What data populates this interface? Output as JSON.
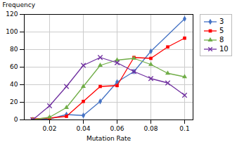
{
  "chart_data": {
    "type": "line",
    "xlabel": "Mutation Rate",
    "ylabel": "Frequency",
    "xlim": [
      0.005,
      0.105
    ],
    "ylim": [
      0,
      120
    ],
    "xticks": [
      0.02,
      0.04,
      0.06,
      0.08,
      0.1
    ],
    "yticks": [
      0,
      20,
      40,
      60,
      80,
      100,
      120
    ],
    "grid": true,
    "legend": "right",
    "series": [
      {
        "name": "3",
        "color": "#4472C4",
        "marker": "diamond",
        "line_style": "solid",
        "x": [
          0.01,
          0.02,
          0.03,
          0.04,
          0.05,
          0.06,
          0.07,
          0.08,
          0.1
        ],
        "values": [
          0,
          1,
          6,
          5,
          21,
          43,
          55,
          78,
          115
        ]
      },
      {
        "name": "5",
        "color": "#FF0000",
        "marker": "square",
        "line_style": "solid",
        "x": [
          0.01,
          0.02,
          0.03,
          0.04,
          0.05,
          0.06,
          0.07,
          0.08,
          0.09,
          0.1
        ],
        "values": [
          1,
          2,
          4,
          21,
          38,
          39,
          71,
          70,
          83,
          93
        ]
      },
      {
        "name": "8",
        "color": "#70AD47",
        "marker": "triangle",
        "line_style": "solid",
        "x": [
          0.01,
          0.02,
          0.03,
          0.04,
          0.05,
          0.06,
          0.07,
          0.08,
          0.09,
          0.1
        ],
        "values": [
          0,
          3,
          14,
          38,
          62,
          68,
          70,
          63,
          53,
          49
        ]
      },
      {
        "name": "10",
        "color": "#7030A0",
        "marker": "x",
        "line_style": "solid",
        "x": [
          0.01,
          0.02,
          0.03,
          0.04,
          0.05,
          0.06,
          0.07,
          0.08,
          0.09,
          0.1
        ],
        "values": [
          0,
          16,
          38,
          62,
          71,
          65,
          55,
          47,
          42,
          28
        ]
      }
    ]
  }
}
